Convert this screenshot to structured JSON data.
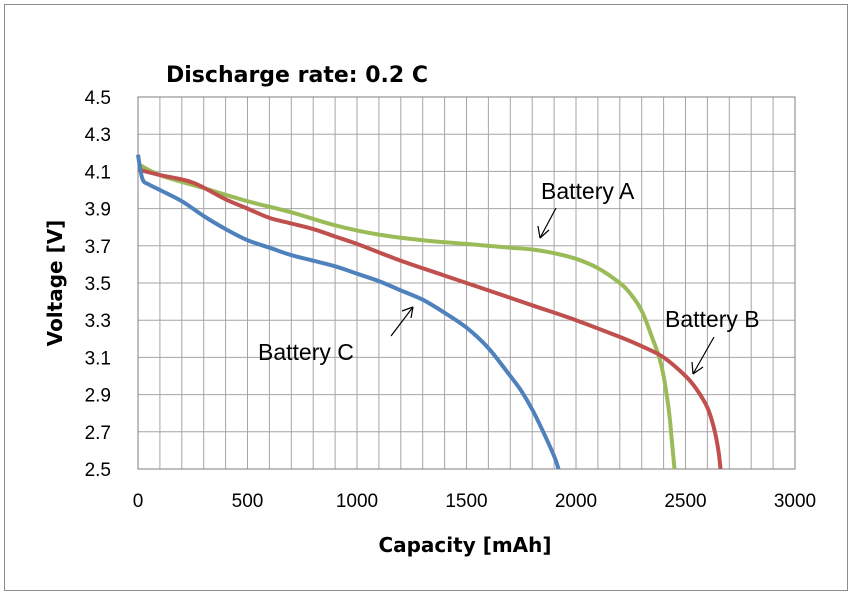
{
  "chart_data": {
    "type": "line",
    "title": "Discharge rate: 0.2 C",
    "xlabel": "Capacity [mAh]",
    "ylabel": "Voltage [V]",
    "xlim": [
      0,
      3000
    ],
    "ylim": [
      2.5,
      4.5
    ],
    "x_ticks": [
      0,
      500,
      1000,
      1500,
      2000,
      2500,
      3000
    ],
    "x_tick_labels": [
      "0",
      "500",
      "1000",
      "1500",
      "2000",
      "2500",
      "3000"
    ],
    "y_ticks": [
      2.5,
      2.7,
      2.9,
      3.1,
      3.3,
      3.5,
      3.7,
      3.9,
      4.1,
      4.3,
      4.5
    ],
    "y_tick_labels": [
      "2.5",
      "2.7",
      "2.9",
      "3.1",
      "3.3",
      "3.5",
      "3.7",
      "3.9",
      "4.1",
      "4.3",
      "4.5"
    ],
    "grid": true,
    "grid_x_step": 100,
    "grid_y_step": 0.2,
    "colors": {
      "Battery A": "#9bbb59",
      "Battery B": "#c0504d",
      "Battery C": "#4f81bd"
    },
    "series": [
      {
        "name": "Battery A",
        "x": [
          0,
          100,
          300,
          500,
          700,
          900,
          1100,
          1300,
          1500,
          1700,
          1800,
          1900,
          2000,
          2100,
          2200,
          2250,
          2300,
          2350,
          2380,
          2400,
          2420,
          2430,
          2440,
          2450
        ],
        "y": [
          4.14,
          4.08,
          4.01,
          3.94,
          3.88,
          3.81,
          3.76,
          3.73,
          3.71,
          3.69,
          3.68,
          3.66,
          3.63,
          3.58,
          3.5,
          3.44,
          3.35,
          3.2,
          3.1,
          3.0,
          2.85,
          2.75,
          2.62,
          2.5
        ]
      },
      {
        "name": "Battery B",
        "x": [
          0,
          100,
          250,
          400,
          500,
          600,
          700,
          800,
          900,
          1000,
          1200,
          1400,
          1600,
          1800,
          2000,
          2200,
          2300,
          2400,
          2500,
          2550,
          2600,
          2630,
          2650,
          2660
        ],
        "y": [
          4.11,
          4.08,
          4.04,
          3.95,
          3.9,
          3.85,
          3.82,
          3.79,
          3.75,
          3.71,
          3.62,
          3.54,
          3.46,
          3.38,
          3.3,
          3.21,
          3.16,
          3.1,
          3.0,
          2.93,
          2.83,
          2.72,
          2.6,
          2.5
        ]
      },
      {
        "name": "Battery C",
        "x": [
          0,
          20,
          50,
          100,
          200,
          300,
          400,
          500,
          600,
          700,
          800,
          900,
          1000,
          1100,
          1200,
          1300,
          1400,
          1500,
          1600,
          1700,
          1750,
          1800,
          1850,
          1900,
          1920
        ],
        "y": [
          4.19,
          4.06,
          4.03,
          4.0,
          3.94,
          3.86,
          3.79,
          3.73,
          3.69,
          3.65,
          3.62,
          3.59,
          3.55,
          3.51,
          3.46,
          3.41,
          3.34,
          3.26,
          3.15,
          3.0,
          2.92,
          2.82,
          2.7,
          2.57,
          2.5
        ]
      }
    ],
    "annotations": [
      {
        "text": "Battery A",
        "series": "Battery A"
      },
      {
        "text": "Battery B",
        "series": "Battery B"
      },
      {
        "text": "Battery C",
        "series": "Battery C"
      }
    ]
  }
}
